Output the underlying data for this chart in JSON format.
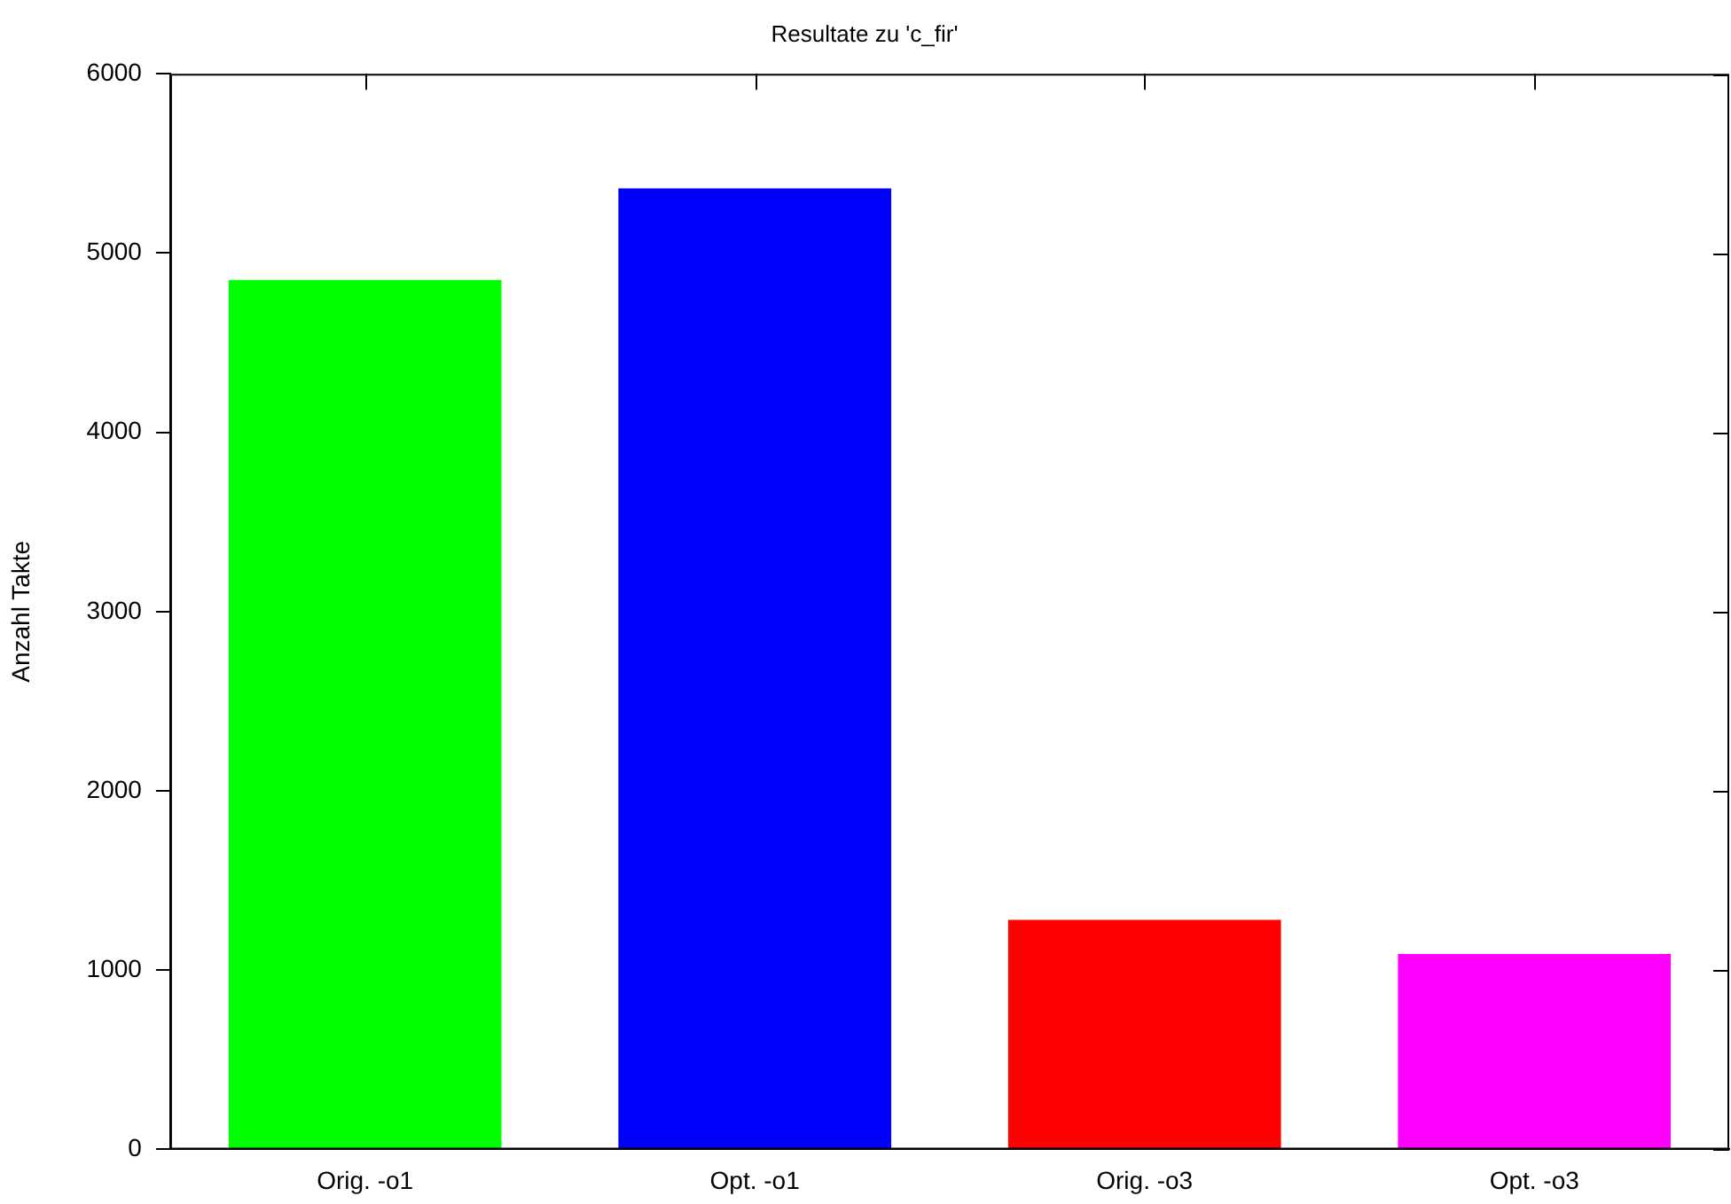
{
  "chart_data": {
    "type": "bar",
    "title": "Resultate zu 'c_fir'",
    "ylabel": "Anzahl Takte",
    "categories": [
      "Orig. -o1",
      "Opt. -o1",
      "Orig. -o3",
      "Opt. -o3"
    ],
    "values": [
      4850,
      5360,
      1280,
      1090
    ],
    "colors": [
      "#00ff00",
      "#0000ff",
      "#ff0000",
      "#ff00ff"
    ],
    "ylim": [
      0,
      6000
    ],
    "yticks": [
      0,
      1000,
      2000,
      3000,
      4000,
      5000,
      6000
    ],
    "grid": false,
    "legend": false
  }
}
